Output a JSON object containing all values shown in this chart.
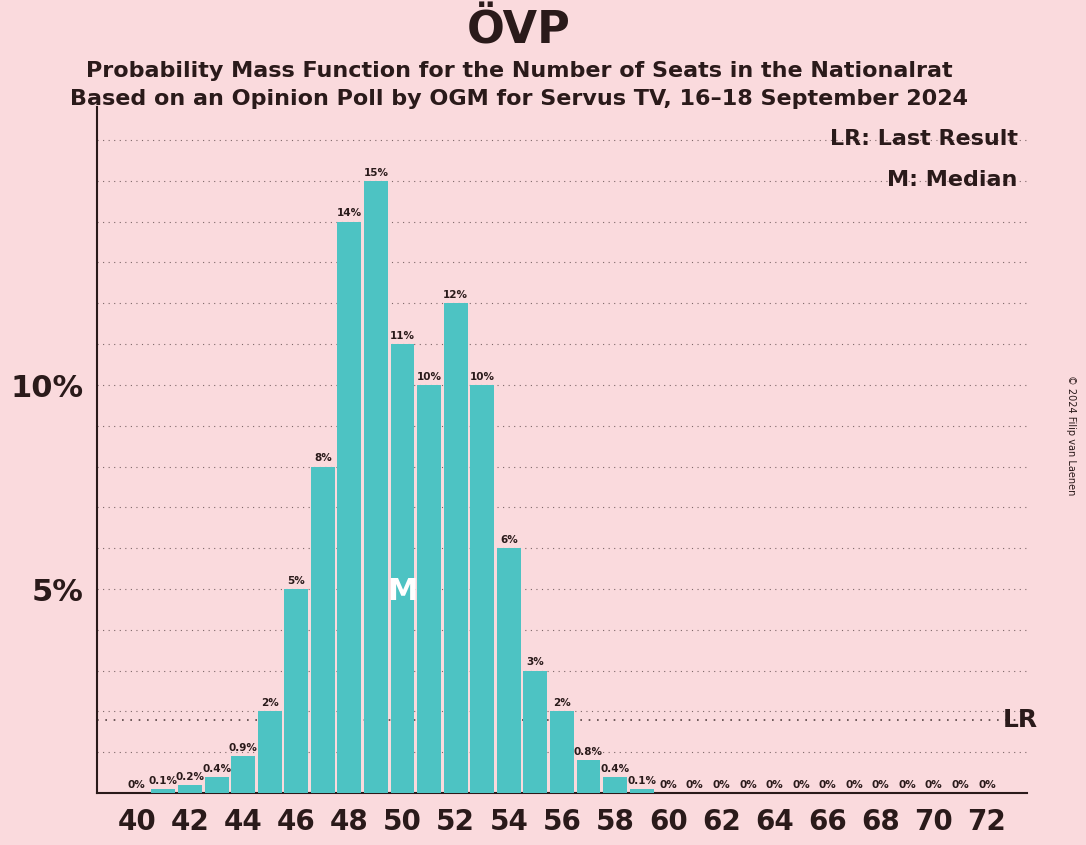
{
  "title": "ÖVP",
  "subtitle1": "Probability Mass Function for the Number of Seats in the Nationalrat",
  "subtitle2": "Based on an Opinion Poll by OGM for Servus TV, 16–18 September 2024",
  "copyright": "© 2024 Filip van Laenen",
  "bar_color": "#4dc3c3",
  "background_color": "#fadadd",
  "text_color": "#2a1a1a",
  "lr_seat": 57,
  "median_seat": 50,
  "seats": [
    40,
    41,
    42,
    43,
    44,
    45,
    46,
    47,
    48,
    49,
    50,
    51,
    52,
    53,
    54,
    55,
    56,
    57,
    58,
    59,
    60,
    61,
    62,
    63,
    64,
    65,
    66,
    67,
    68,
    69,
    70,
    71,
    72
  ],
  "probabilities": [
    0.0,
    0.001,
    0.002,
    0.004,
    0.009,
    0.02,
    0.05,
    0.08,
    0.14,
    0.15,
    0.11,
    0.1,
    0.12,
    0.1,
    0.06,
    0.03,
    0.02,
    0.008,
    0.004,
    0.001,
    0.0,
    0.0,
    0.0,
    0.0,
    0.0,
    0.0,
    0.0,
    0.0,
    0.0,
    0.0,
    0.0,
    0.0,
    0.0
  ],
  "xtick_positions": [
    40,
    42,
    44,
    46,
    48,
    50,
    52,
    54,
    56,
    58,
    60,
    62,
    64,
    66,
    68,
    70,
    72
  ],
  "ylim": [
    0,
    0.168
  ],
  "ylabel_ticks": [
    0.05,
    0.1
  ],
  "ylabel_labels": [
    "5%",
    "10%"
  ],
  "grid_yticks": [
    0.01,
    0.02,
    0.03,
    0.04,
    0.05,
    0.06,
    0.07,
    0.08,
    0.09,
    0.1,
    0.11,
    0.12,
    0.13,
    0.14,
    0.15,
    0.16
  ]
}
